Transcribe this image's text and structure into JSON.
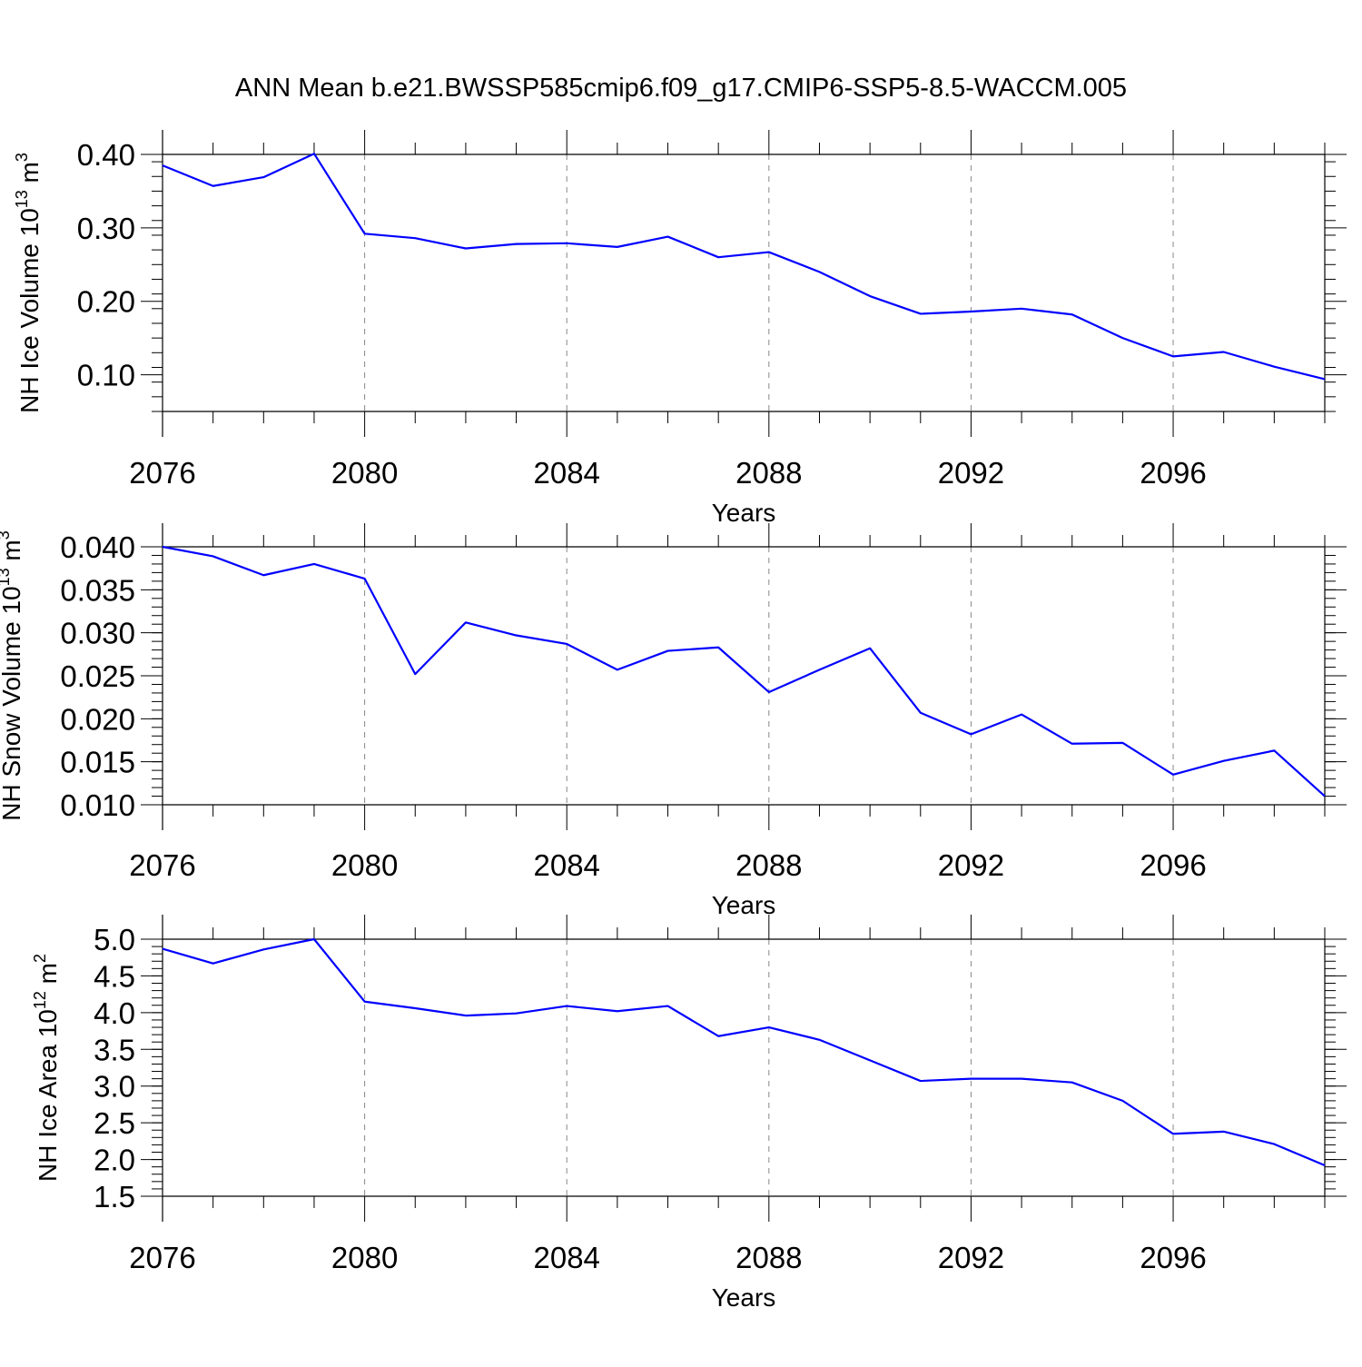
{
  "figure": {
    "title": "ANN Mean b.e21.BWSSP585cmip6.f09_g17.CMIP6-SSP5-8.5-WACCM.005"
  },
  "chart_data": [
    {
      "type": "line",
      "xlabel": "Years",
      "ylabel": "NH Ice Volume 10",
      "ylabel_exp": "13",
      "ylabel_unit": " m",
      "ylabel_unit_exp": "3",
      "xlim": [
        2076,
        2099
      ],
      "ylim": [
        0.05,
        0.4
      ],
      "x_ticks": [
        2076,
        2080,
        2084,
        2088,
        2092,
        2096
      ],
      "x_tick_labels": [
        "2076",
        "2080",
        "2084",
        "2088",
        "2092",
        "2096"
      ],
      "x_minor_step": 1,
      "y_ticks": [
        0.1,
        0.2,
        0.3,
        0.4
      ],
      "y_tick_labels": [
        "0.10",
        "0.20",
        "0.30",
        "0.40"
      ],
      "y_minor_step": 0.02,
      "grid": "vertical-dashed-at-major-x",
      "color": "#0000ff",
      "x": [
        2076,
        2077,
        2078,
        2079,
        2080,
        2081,
        2082,
        2083,
        2084,
        2085,
        2086,
        2087,
        2088,
        2089,
        2090,
        2091,
        2092,
        2093,
        2094,
        2095,
        2096,
        2097,
        2098,
        2099
      ],
      "values": [
        0.385,
        0.357,
        0.369,
        0.401,
        0.292,
        0.286,
        0.272,
        0.278,
        0.279,
        0.274,
        0.288,
        0.26,
        0.267,
        0.24,
        0.207,
        0.183,
        0.186,
        0.19,
        0.182,
        0.15,
        0.125,
        0.131,
        0.111,
        0.094
      ]
    },
    {
      "type": "line",
      "xlabel": "Years",
      "ylabel": "NH Snow Volume 10",
      "ylabel_exp": "13",
      "ylabel_unit": " m",
      "ylabel_unit_exp": "3",
      "xlim": [
        2076,
        2099
      ],
      "ylim": [
        0.01,
        0.04
      ],
      "x_ticks": [
        2076,
        2080,
        2084,
        2088,
        2092,
        2096
      ],
      "x_tick_labels": [
        "2076",
        "2080",
        "2084",
        "2088",
        "2092",
        "2096"
      ],
      "x_minor_step": 1,
      "y_ticks": [
        0.01,
        0.015,
        0.02,
        0.025,
        0.03,
        0.035,
        0.04
      ],
      "y_tick_labels": [
        "0.010",
        "0.015",
        "0.020",
        "0.025",
        "0.030",
        "0.035",
        "0.040"
      ],
      "y_minor_step": 0.001,
      "grid": "vertical-dashed-at-major-x",
      "color": "#0000ff",
      "x": [
        2076,
        2077,
        2078,
        2079,
        2080,
        2081,
        2082,
        2083,
        2084,
        2085,
        2086,
        2087,
        2088,
        2089,
        2090,
        2091,
        2092,
        2093,
        2094,
        2095,
        2096,
        2097,
        2098,
        2099
      ],
      "values": [
        0.04,
        0.0389,
        0.0367,
        0.038,
        0.0363,
        0.0252,
        0.0312,
        0.0297,
        0.0287,
        0.0257,
        0.0279,
        0.0283,
        0.0231,
        0.0257,
        0.0282,
        0.0207,
        0.0182,
        0.0205,
        0.0171,
        0.0172,
        0.0135,
        0.0151,
        0.0163,
        0.011
      ]
    },
    {
      "type": "line",
      "xlabel": "Years",
      "ylabel": "NH Ice Area 10",
      "ylabel_exp": "12",
      "ylabel_unit": " m",
      "ylabel_unit_exp": "2",
      "xlim": [
        2076,
        2099
      ],
      "ylim": [
        1.5,
        5.0
      ],
      "x_ticks": [
        2076,
        2080,
        2084,
        2088,
        2092,
        2096
      ],
      "x_tick_labels": [
        "2076",
        "2080",
        "2084",
        "2088",
        "2092",
        "2096"
      ],
      "x_minor_step": 1,
      "y_ticks": [
        1.5,
        2.0,
        2.5,
        3.0,
        3.5,
        4.0,
        4.5,
        5.0
      ],
      "y_tick_labels": [
        "1.5",
        "2.0",
        "2.5",
        "3.0",
        "3.5",
        "4.0",
        "4.5",
        "5.0"
      ],
      "y_minor_step": 0.1,
      "grid": "vertical-dashed-at-major-x",
      "color": "#0000ff",
      "x": [
        2076,
        2077,
        2078,
        2079,
        2080,
        2081,
        2082,
        2083,
        2084,
        2085,
        2086,
        2087,
        2088,
        2089,
        2090,
        2091,
        2092,
        2093,
        2094,
        2095,
        2096,
        2097,
        2098,
        2099
      ],
      "values": [
        4.87,
        4.67,
        4.86,
        5.0,
        4.15,
        4.06,
        3.96,
        3.99,
        4.09,
        4.02,
        4.09,
        3.68,
        3.8,
        3.63,
        3.35,
        3.07,
        3.1,
        3.1,
        3.05,
        2.8,
        2.35,
        2.38,
        2.21,
        1.92
      ]
    }
  ]
}
